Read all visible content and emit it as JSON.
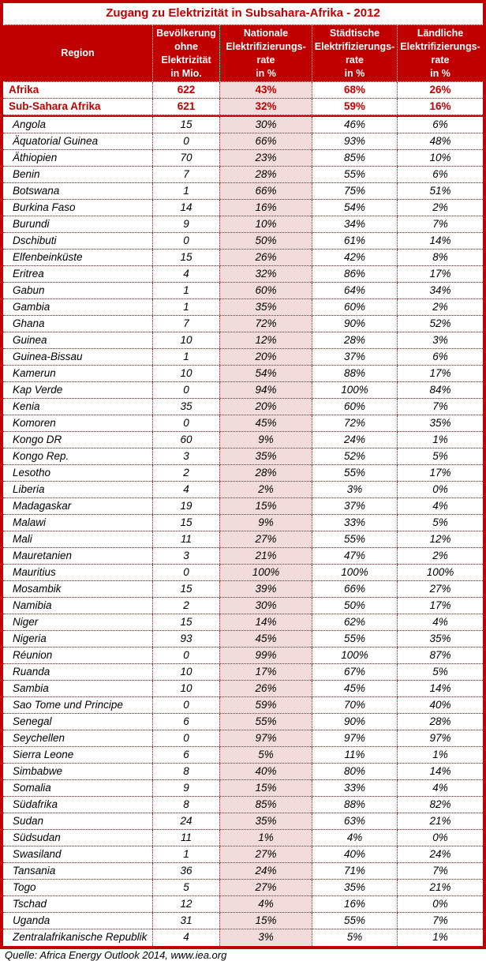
{
  "table": {
    "title": "Zugang zu Elektrizität in Subsahara-Afrika - 2012",
    "header": {
      "region": "Region",
      "population": "Bevölkerung\nohne\nElektrizität\nin Mio.",
      "national": "Nationale\nElektrifizierungs-\nrate\nin %",
      "urban": "Städtische\nElektrifizierungs-\nrate\nin %",
      "rural": "Ländliche\nElektrifizierungs-\nrate\nin %"
    },
    "source": "Quelle: Africa Energy Outlook 2014, www.iea.org"
  },
  "colors": {
    "accent_red": "#C00000",
    "header_background": "#C00000",
    "header_text": "#FFFFFF",
    "highlight_pink": "#F2DCDB",
    "body_text": "#000000"
  },
  "chart_data": {
    "type": "table",
    "title": "Zugang zu Elektrizität in Subsahara-Afrika - 2012",
    "columns": [
      "Region",
      "Bevölkerung ohne Elektrizität in Mio.",
      "Nationale Elektrifizierungsrate in %",
      "Städtische Elektrifizierungsrate in %",
      "Ländliche Elektrifizierungsrate in %"
    ],
    "summary_rows": [
      [
        "Afrika",
        "622",
        "43%",
        "68%",
        "26%"
      ],
      [
        "Sub-Sahara Afrika",
        "621",
        "32%",
        "59%",
        "16%"
      ]
    ],
    "rows": [
      [
        "Angola",
        "15",
        "30%",
        "46%",
        "6%"
      ],
      [
        "Äquatorial Guinea",
        "0",
        "66%",
        "93%",
        "48%"
      ],
      [
        "Äthiopien",
        "70",
        "23%",
        "85%",
        "10%"
      ],
      [
        "Benin",
        "7",
        "28%",
        "55%",
        "6%"
      ],
      [
        "Botswana",
        "1",
        "66%",
        "75%",
        "51%"
      ],
      [
        "Burkina Faso",
        "14",
        "16%",
        "54%",
        "2%"
      ],
      [
        "Burundi",
        "9",
        "10%",
        "34%",
        "7%"
      ],
      [
        "Dschibuti",
        "0",
        "50%",
        "61%",
        "14%"
      ],
      [
        "Elfenbeinküste",
        "15",
        "26%",
        "42%",
        "8%"
      ],
      [
        "Eritrea",
        "4",
        "32%",
        "86%",
        "17%"
      ],
      [
        "Gabun",
        "1",
        "60%",
        "64%",
        "34%"
      ],
      [
        "Gambia",
        "1",
        "35%",
        "60%",
        "2%"
      ],
      [
        "Ghana",
        "7",
        "72%",
        "90%",
        "52%"
      ],
      [
        "Guinea",
        "10",
        "12%",
        "28%",
        "3%"
      ],
      [
        "Guinea-Bissau",
        "1",
        "20%",
        "37%",
        "6%"
      ],
      [
        "Kamerun",
        "10",
        "54%",
        "88%",
        "17%"
      ],
      [
        "Kap Verde",
        "0",
        "94%",
        "100%",
        "84%"
      ],
      [
        "Kenia",
        "35",
        "20%",
        "60%",
        "7%"
      ],
      [
        "Komoren",
        "0",
        "45%",
        "72%",
        "35%"
      ],
      [
        "Kongo DR",
        "60",
        "9%",
        "24%",
        "1%"
      ],
      [
        "Kongo Rep.",
        "3",
        "35%",
        "52%",
        "5%"
      ],
      [
        "Lesotho",
        "2",
        "28%",
        "55%",
        "17%"
      ],
      [
        "Liberia",
        "4",
        "2%",
        "3%",
        "0%"
      ],
      [
        "Madagaskar",
        "19",
        "15%",
        "37%",
        "4%"
      ],
      [
        "Malawi",
        "15",
        "9%",
        "33%",
        "5%"
      ],
      [
        "Mali",
        "11",
        "27%",
        "55%",
        "12%"
      ],
      [
        "Mauretanien",
        "3",
        "21%",
        "47%",
        "2%"
      ],
      [
        "Mauritius",
        "0",
        "100%",
        "100%",
        "100%"
      ],
      [
        "Mosambik",
        "15",
        "39%",
        "66%",
        "27%"
      ],
      [
        "Namibia",
        "2",
        "30%",
        "50%",
        "17%"
      ],
      [
        "Niger",
        "15",
        "14%",
        "62%",
        "4%"
      ],
      [
        "Nigeria",
        "93",
        "45%",
        "55%",
        "35%"
      ],
      [
        "Réunion",
        "0",
        "99%",
        "100%",
        "87%"
      ],
      [
        "Ruanda",
        "10",
        "17%",
        "67%",
        "5%"
      ],
      [
        "Sambia",
        "10",
        "26%",
        "45%",
        "14%"
      ],
      [
        "Sao Tome und Principe",
        "0",
        "59%",
        "70%",
        "40%"
      ],
      [
        "Senegal",
        "6",
        "55%",
        "90%",
        "28%"
      ],
      [
        "Seychellen",
        "0",
        "97%",
        "97%",
        "97%"
      ],
      [
        "Sierra Leone",
        "6",
        "5%",
        "11%",
        "1%"
      ],
      [
        "Simbabwe",
        "8",
        "40%",
        "80%",
        "14%"
      ],
      [
        "Somalia",
        "9",
        "15%",
        "33%",
        "4%"
      ],
      [
        "Südafrika",
        "8",
        "85%",
        "88%",
        "82%"
      ],
      [
        "Sudan",
        "24",
        "35%",
        "63%",
        "21%"
      ],
      [
        "Südsudan",
        "11",
        "1%",
        "4%",
        "0%"
      ],
      [
        "Swasiland",
        "1",
        "27%",
        "40%",
        "24%"
      ],
      [
        "Tansania",
        "36",
        "24%",
        "71%",
        "7%"
      ],
      [
        "Togo",
        "5",
        "27%",
        "35%",
        "21%"
      ],
      [
        "Tschad",
        "12",
        "4%",
        "16%",
        "0%"
      ],
      [
        "Uganda",
        "31",
        "15%",
        "55%",
        "7%"
      ],
      [
        "Zentralafrikanische Republik",
        "4",
        "3%",
        "5%",
        "1%"
      ]
    ],
    "source": "Quelle: Africa Energy Outlook 2014, www.iea.org",
    "highlighted_column": "Nationale Elektrifizierungsrate in %"
  }
}
